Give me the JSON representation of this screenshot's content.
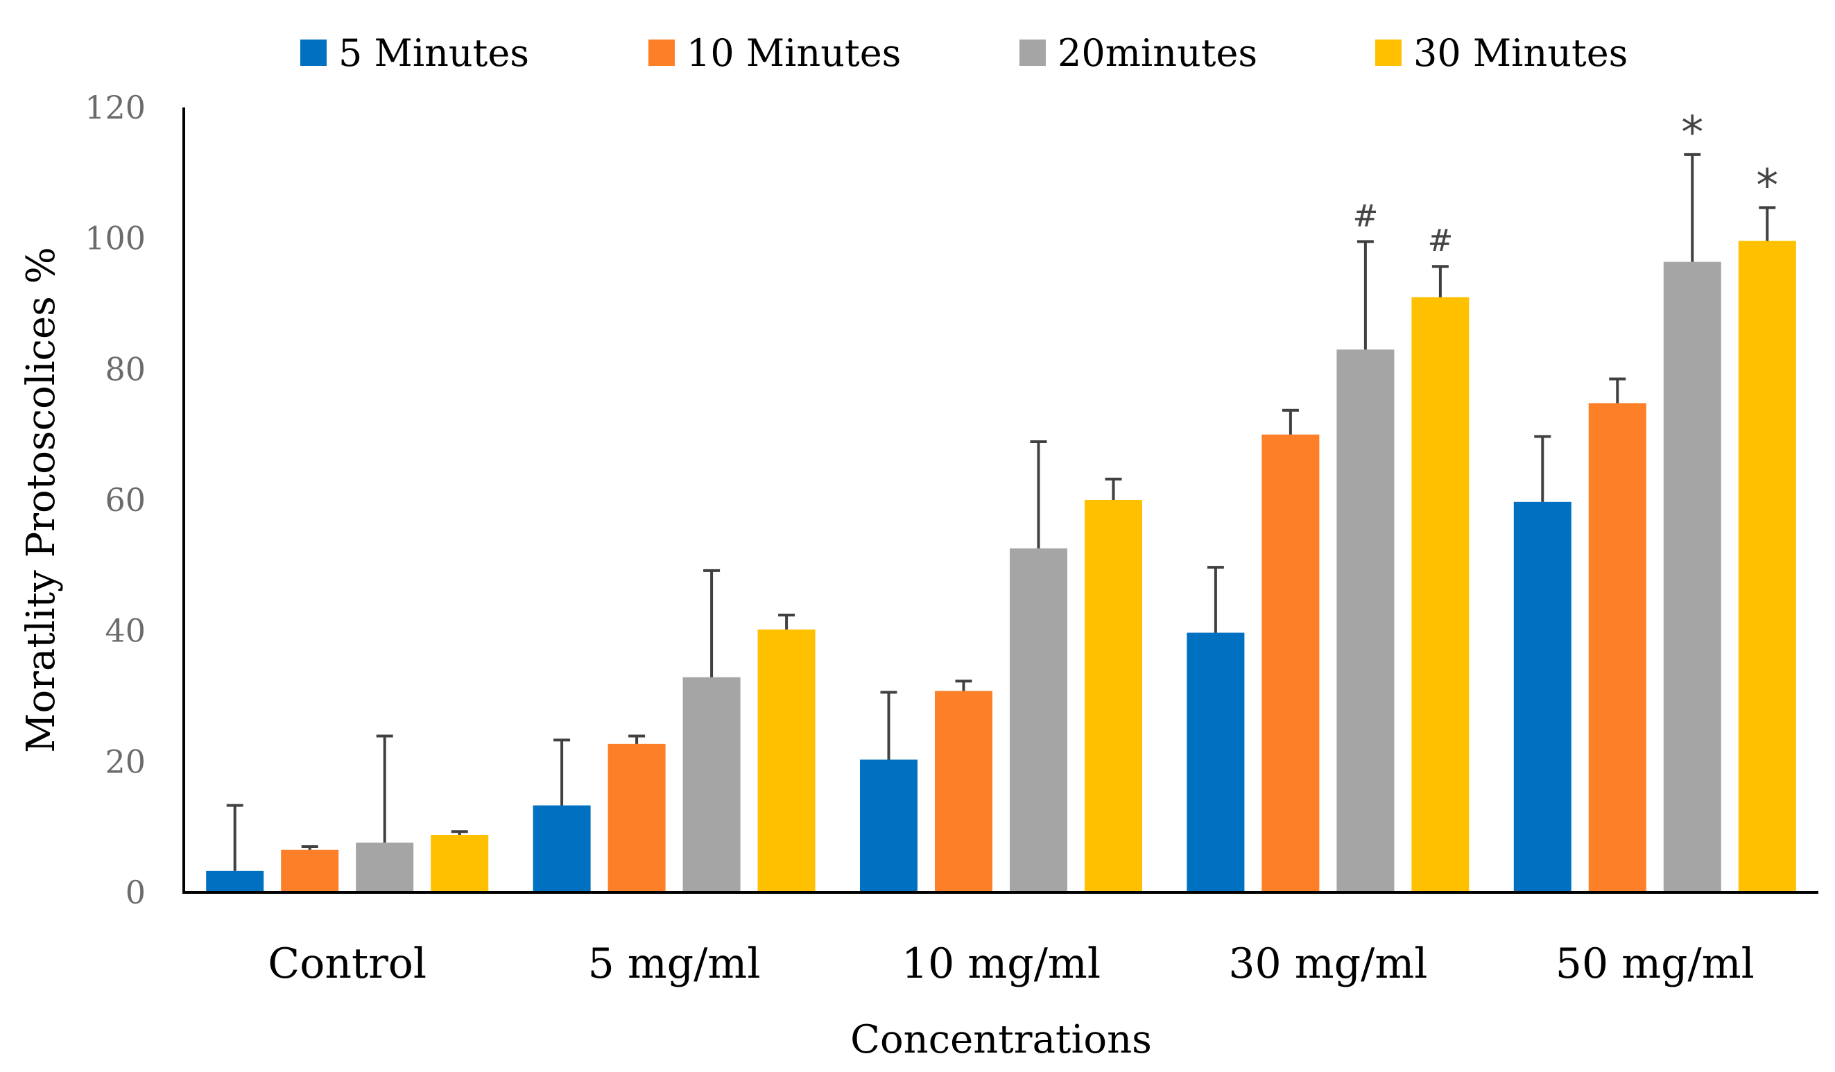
{
  "chart_data": {
    "type": "bar",
    "title": "",
    "xlabel": "Concentrations",
    "ylabel": "Moratlity Protoscolices %",
    "ylim": [
      0,
      120
    ],
    "yticks": [
      0,
      20,
      40,
      60,
      80,
      100,
      120
    ],
    "grid": false,
    "legend_position": "top",
    "categories": [
      "Control",
      "5 mg/ml",
      "10 mg/ml",
      "30 mg/ml",
      "50 mg/ml"
    ],
    "series": [
      {
        "name": "5 Minutes",
        "color": "#0070c0",
        "values": [
          3.3,
          13.3,
          20.3,
          39.7,
          59.7
        ],
        "errors": [
          10.0,
          10.0,
          10.3,
          10.0,
          10.0
        ],
        "annotations": [
          "",
          "",
          "",
          "",
          ""
        ]
      },
      {
        "name": "10 Minutes",
        "color": "#fd7f27",
        "values": [
          6.5,
          22.7,
          30.8,
          70.0,
          74.8
        ],
        "errors": [
          0.5,
          1.2,
          1.5,
          3.7,
          3.7
        ],
        "annotations": [
          "",
          "",
          "",
          "",
          ""
        ]
      },
      {
        "name": "20minutes",
        "color": "#a5a5a5",
        "values": [
          7.6,
          32.9,
          52.6,
          83.0,
          96.4
        ],
        "errors": [
          16.3,
          16.3,
          16.3,
          16.5,
          16.4
        ],
        "annotations": [
          "",
          "",
          "",
          "#",
          "*"
        ]
      },
      {
        "name": "30 Minutes",
        "color": "#ffc000",
        "values": [
          8.8,
          40.2,
          60.0,
          91.0,
          99.6
        ],
        "errors": [
          0.5,
          2.2,
          3.2,
          4.7,
          5.1
        ],
        "annotations": [
          "",
          "",
          "",
          "#",
          "*"
        ]
      }
    ]
  }
}
